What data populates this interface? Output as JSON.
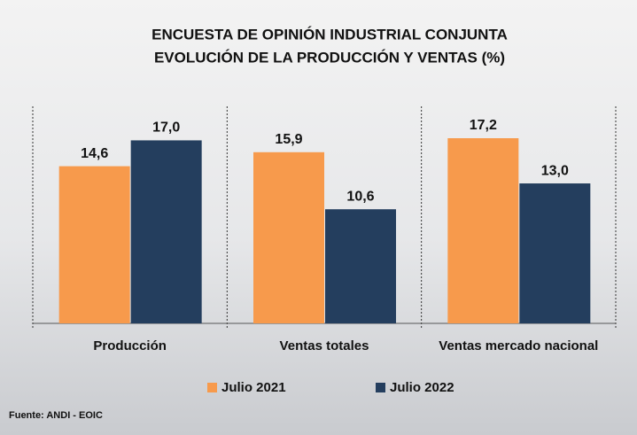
{
  "chart_data": {
    "type": "bar",
    "title": "ENCUESTA DE OPINIÓN INDUSTRIAL CONJUNTA",
    "subtitle": "EVOLUCIÓN DE LA PRODUCCIÓN Y VENTAS (%)",
    "categories": [
      "Producción",
      "Ventas totales",
      "Ventas mercado nacional"
    ],
    "series": [
      {
        "name": "Julio 2021",
        "color": "#f79a4c",
        "values": [
          14.6,
          15.9,
          17.2
        ],
        "value_labels": [
          "14,6",
          "15,9",
          "17,2"
        ]
      },
      {
        "name": "Julio 2022",
        "color": "#243e5e",
        "values": [
          17.0,
          10.6,
          13.0
        ],
        "value_labels": [
          "17,0",
          "10,6",
          "13,0"
        ]
      }
    ],
    "legend": "bottom",
    "source": "Fuente: ANDI - EOIC"
  }
}
